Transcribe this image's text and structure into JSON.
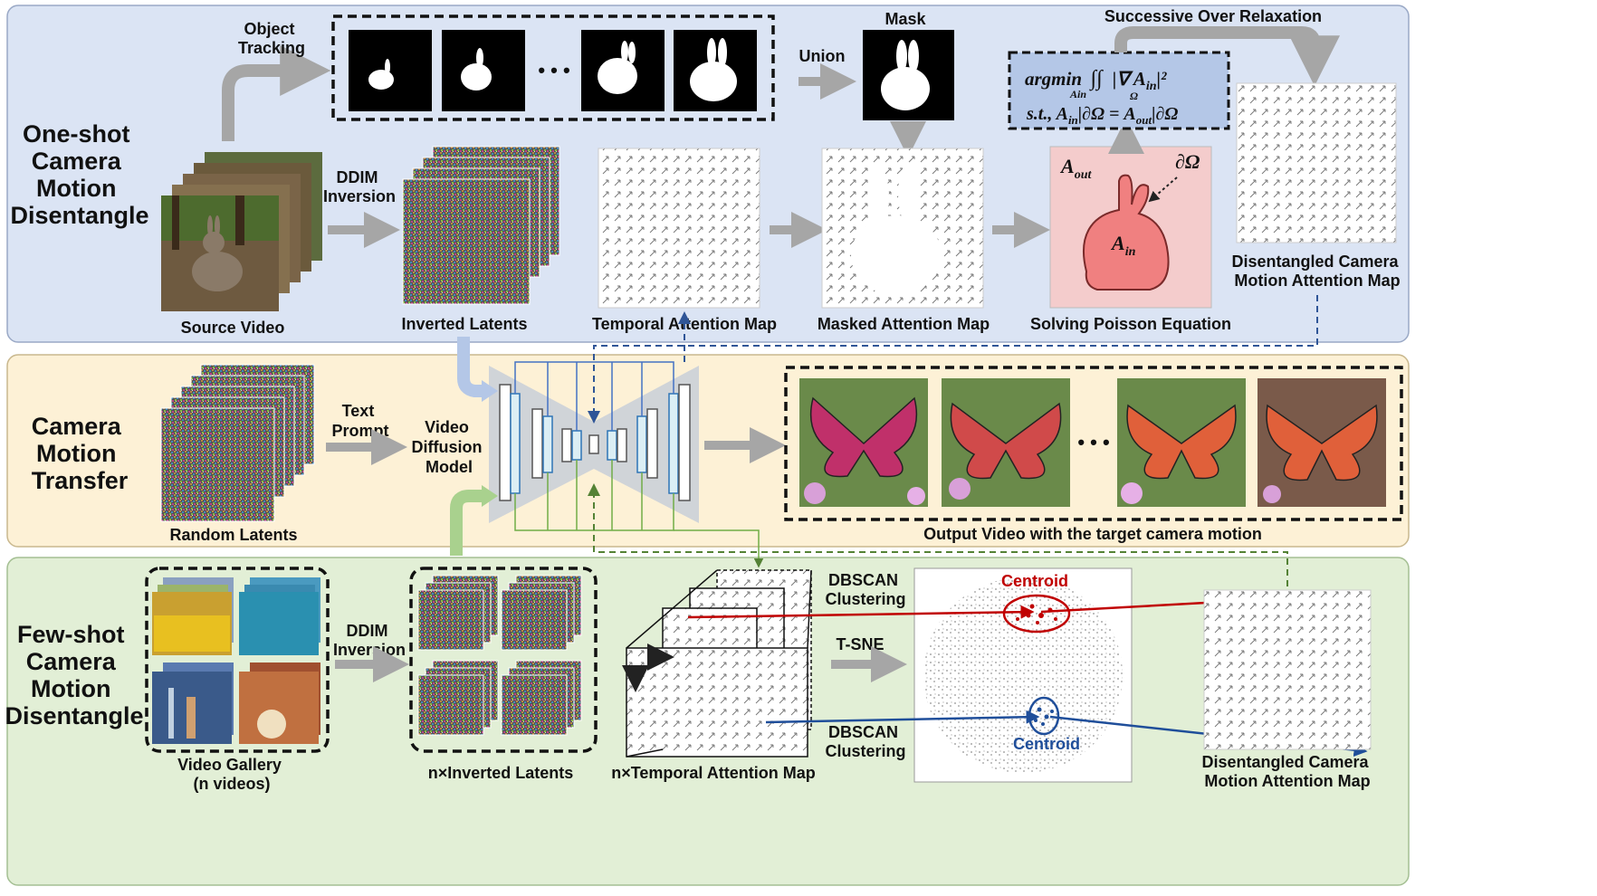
{
  "panels": {
    "one_shot": {
      "title": [
        "One-shot",
        "Camera",
        "Motion",
        "Disentangle"
      ],
      "color": "#dbe4f4"
    },
    "transfer": {
      "title": [
        "Camera",
        "Motion",
        "Transfer"
      ],
      "color": "#fdf1d6"
    },
    "few_shot": {
      "title": [
        "Few-shot",
        "Camera",
        "Motion",
        "Disentangle"
      ],
      "color": "#e2efd6"
    }
  },
  "labels": {
    "object_tracking": [
      "Object",
      "Tracking"
    ],
    "union": "Union",
    "mask": "Mask",
    "sor": "Successive Over Relaxation",
    "ddim_1": [
      "DDIM",
      "Inversion"
    ],
    "source_video": "Source Video",
    "inverted_latents": "Inverted Latents",
    "temporal_attention_map": "Temporal Attention Map",
    "masked_attention_map": "Masked Attention Map",
    "solving_poisson": "Solving Poisson Equation",
    "disentangled_map_1": [
      "Disentangled Camera",
      "Motion Attention Map"
    ],
    "text_prompt": [
      "Text",
      "Prompt"
    ],
    "video_diffusion_model": [
      "Video",
      "Diffusion",
      "Model"
    ],
    "random_latents": "Random Latents",
    "output_video": "Output Video with the target camera motion",
    "ddim_2": [
      "DDIM",
      "Inversion"
    ],
    "video_gallery": [
      "Video Gallery",
      "(n videos)"
    ],
    "n_inverted_latents": "n×Inverted Latents",
    "n_temporal_map": "n×Temporal Attention Map",
    "dbscan_1": [
      "DBSCAN",
      "Clustering"
    ],
    "dbscan_2": [
      "DBSCAN",
      "Clustering"
    ],
    "tsne": "T-SNE",
    "centroid_red": "Centroid",
    "centroid_blue": "Centroid",
    "disentangled_map_2": [
      "Disentangled Camera",
      "Motion Attention Map"
    ]
  },
  "math": {
    "argmin": "argmin",
    "argmin_sub": "Ain",
    "integral": "∫∫",
    "omega_sub": "Ω",
    "grad_term": "|∇ A",
    "grad_sub": "in",
    "grad_tail": "|²",
    "st_line": "s.t., A",
    "st_sub1": "in",
    "st_mid": "|∂Ω = A",
    "st_sub2": "out",
    "st_tail": "|∂Ω",
    "a_out": "A",
    "a_out_sub": "out",
    "a_in": "A",
    "a_in_sub": "in",
    "boundary": "∂Ω"
  },
  "ellipsis": "• • •",
  "colors": {
    "gray_arrow": "#a6a6a6",
    "blue_arrow": "#b4c7e7",
    "green_arrow": "#a9d18e",
    "dashed_blue": "#2f5597",
    "dashed_green": "#548235",
    "red": "#c00000",
    "blue": "#1f4e9a",
    "poisson_bg": "#f4cccc",
    "rabbit_fill": "#f08080",
    "unet_blue": "#dbeef4",
    "unet_blue_stroke": "#2e75b6",
    "butterfly_wing": "#e0603a",
    "butterfly_inner": "#c0306a"
  }
}
